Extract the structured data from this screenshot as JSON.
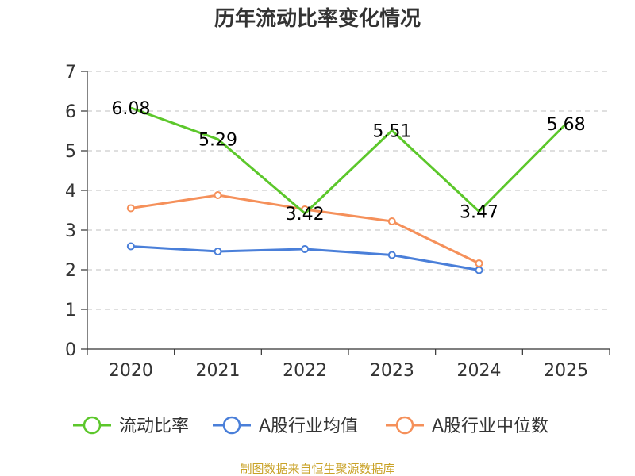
{
  "chart_data": {
    "type": "line",
    "title": "历年流动比率变化情况",
    "categories": [
      "2020",
      "2021",
      "2022",
      "2023",
      "2024",
      "2025"
    ],
    "ylim": [
      0,
      7
    ],
    "yticks": [
      0,
      1,
      2,
      3,
      4,
      5,
      6,
      7
    ],
    "grid": true,
    "legend_position": "bottom",
    "series": [
      {
        "name": "流动比率",
        "color": "#5cc72b",
        "values": [
          6.08,
          5.29,
          3.42,
          5.51,
          3.47,
          5.68
        ],
        "labels": [
          "6.08",
          "5.29",
          "3.42",
          "5.51",
          "3.47",
          "5.68"
        ],
        "markers": false
      },
      {
        "name": "A股行业均值",
        "color": "#4a7fd9",
        "values": [
          2.59,
          2.46,
          2.52,
          2.37,
          1.99,
          null
        ],
        "markers": true
      },
      {
        "name": "A股行业中位数",
        "color": "#f5905a",
        "values": [
          3.55,
          3.88,
          3.52,
          3.22,
          2.16,
          null
        ],
        "markers": true
      }
    ],
    "source": "制图数据来自恒生聚源数据库"
  }
}
